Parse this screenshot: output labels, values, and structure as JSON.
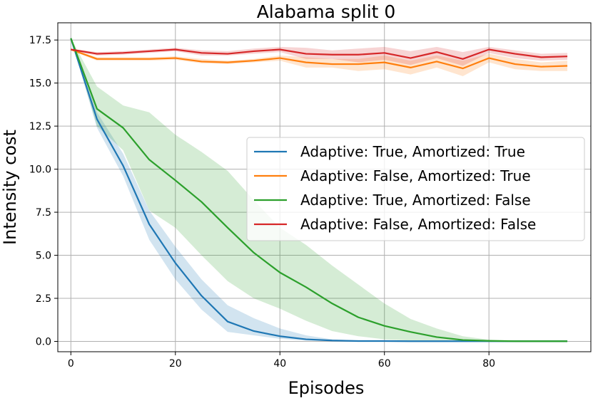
{
  "chart_data": {
    "type": "line",
    "title": "Alabama split 0",
    "xlabel": "Episodes",
    "ylabel": "Intensity cost",
    "xlim": [
      -2.5,
      99.5
    ],
    "ylim": [
      -0.6,
      18.5
    ],
    "xticks": [
      0,
      20,
      40,
      60,
      80
    ],
    "yticks": [
      0.0,
      2.5,
      5.0,
      7.5,
      10.0,
      12.5,
      15.0,
      17.5
    ],
    "ytick_labels": [
      "0.0",
      "2.5",
      "5.0",
      "7.5",
      "10.0",
      "12.5",
      "15.0",
      "17.5"
    ],
    "grid": true,
    "legend_position": "center-right",
    "x": [
      0,
      5,
      10,
      15,
      20,
      25,
      30,
      35,
      40,
      45,
      50,
      55,
      60,
      65,
      70,
      75,
      80,
      85,
      90,
      95
    ],
    "series": [
      {
        "name": "Adaptive: True, Amortized: True",
        "color": "#1f77b4",
        "values": [
          17.6,
          12.9,
          10.2,
          6.8,
          4.55,
          2.65,
          1.15,
          0.6,
          0.3,
          0.12,
          0.05,
          0.02,
          0.02,
          0.01,
          0.01,
          0.01,
          0.01,
          0.01,
          0.01,
          0.01
        ],
        "lower": [
          17.6,
          12.4,
          9.6,
          5.9,
          3.6,
          1.85,
          0.55,
          0.35,
          0.15,
          0.05,
          0.01,
          0.0,
          0.0,
          0.0,
          0.0,
          0.0,
          0.0,
          0.0,
          0.0,
          0.0
        ],
        "upper": [
          17.6,
          13.3,
          10.9,
          7.6,
          5.5,
          3.6,
          2.1,
          1.35,
          0.75,
          0.35,
          0.12,
          0.05,
          0.03,
          0.02,
          0.02,
          0.02,
          0.02,
          0.02,
          0.02,
          0.02
        ]
      },
      {
        "name": "Adaptive: False, Amortized: True",
        "color": "#ff7f0e",
        "values": [
          16.95,
          16.4,
          16.4,
          16.4,
          16.45,
          16.25,
          16.2,
          16.3,
          16.45,
          16.2,
          16.1,
          16.1,
          16.2,
          15.9,
          16.25,
          15.85,
          16.45,
          16.1,
          15.95,
          16.0
        ],
        "lower": [
          16.9,
          16.3,
          16.3,
          16.3,
          16.35,
          16.15,
          16.1,
          16.2,
          16.3,
          15.9,
          15.9,
          15.7,
          15.8,
          15.5,
          15.9,
          15.4,
          16.2,
          15.8,
          15.7,
          15.7
        ],
        "upper": [
          17.0,
          16.5,
          16.5,
          16.5,
          16.55,
          16.4,
          16.3,
          16.4,
          16.6,
          16.5,
          16.4,
          16.4,
          16.6,
          16.3,
          16.6,
          16.3,
          16.7,
          16.4,
          16.2,
          16.3
        ]
      },
      {
        "name": "Adaptive: True, Amortized: False",
        "color": "#2ca02c",
        "values": [
          17.6,
          13.5,
          12.4,
          10.55,
          9.35,
          8.1,
          6.6,
          5.15,
          4.0,
          3.15,
          2.2,
          1.4,
          0.9,
          0.55,
          0.25,
          0.08,
          0.03,
          0.01,
          0.01,
          0.01
        ],
        "lower": [
          17.6,
          12.5,
          11.1,
          7.6,
          6.6,
          5.0,
          3.5,
          2.5,
          1.9,
          1.2,
          0.6,
          0.3,
          0.12,
          0.05,
          0.02,
          0.0,
          0.0,
          0.0,
          0.0,
          0.0
        ],
        "upper": [
          17.6,
          14.8,
          13.7,
          13.3,
          12.0,
          11.0,
          9.9,
          8.2,
          6.6,
          5.6,
          4.4,
          3.3,
          2.2,
          1.3,
          0.75,
          0.3,
          0.1,
          0.05,
          0.03,
          0.03
        ]
      },
      {
        "name": "Adaptive: False, Amortized: False",
        "color": "#d62728",
        "values": [
          16.95,
          16.7,
          16.75,
          16.85,
          16.95,
          16.75,
          16.7,
          16.85,
          16.95,
          16.7,
          16.65,
          16.65,
          16.75,
          16.45,
          16.8,
          16.4,
          16.95,
          16.7,
          16.5,
          16.55
        ],
        "lower": [
          16.9,
          16.6,
          16.65,
          16.75,
          16.85,
          16.6,
          16.6,
          16.7,
          16.8,
          16.4,
          16.4,
          16.2,
          16.35,
          16.05,
          16.45,
          16.0,
          16.75,
          16.45,
          16.3,
          16.35
        ],
        "upper": [
          17.0,
          16.8,
          16.85,
          16.95,
          17.05,
          16.9,
          16.85,
          17.0,
          17.1,
          17.05,
          16.9,
          17.0,
          17.1,
          16.85,
          17.1,
          16.8,
          17.1,
          16.9,
          16.7,
          16.75
        ]
      }
    ]
  }
}
